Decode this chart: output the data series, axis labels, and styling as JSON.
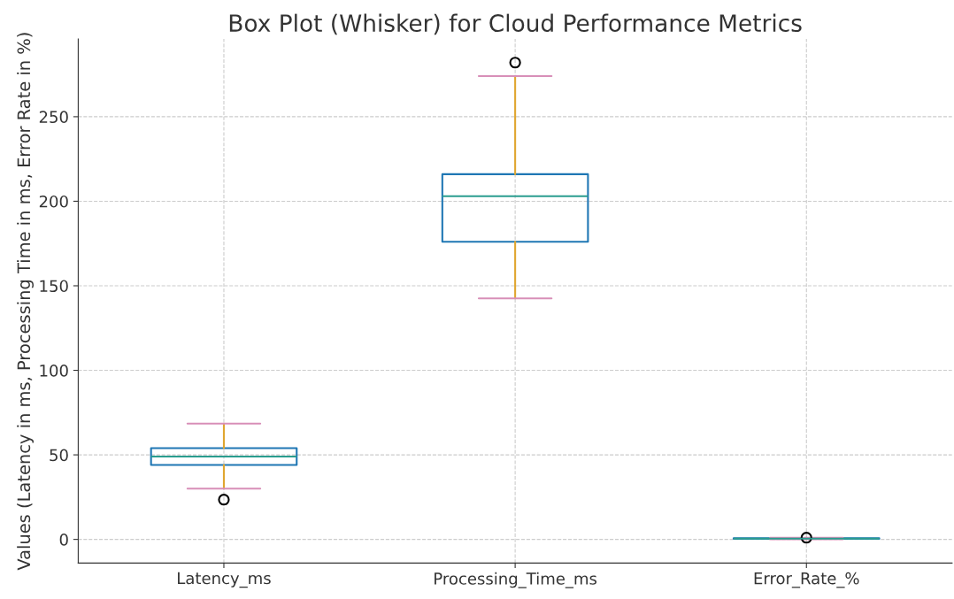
{
  "chart_data": {
    "type": "box",
    "title": "Box Plot (Whisker) for Cloud Performance Metrics",
    "ylabel": "Values (Latency in ms, Processing Time in ms, Error Rate in %)",
    "categories": [
      "Latency_ms",
      "Processing_Time_ms",
      "Error_Rate_%"
    ],
    "series": [
      {
        "color": "#1f77b4",
        "boxes": [
          {
            "low": 30,
            "q1": 44,
            "median": 49,
            "q3": 54,
            "high": 68.5,
            "outliers": [
              23.5
            ]
          },
          {
            "low": 142.5,
            "q1": 176,
            "median": 203,
            "q3": 216,
            "high": 274,
            "outliers": [
              282
            ]
          },
          {
            "low": 0.1,
            "q1": 0.3,
            "median": 0.5,
            "q3": 0.7,
            "high": 0.9,
            "outliers": [
              1
            ]
          }
        ]
      }
    ],
    "ylim": [
      -14,
      296
    ],
    "yticks": [
      0,
      50,
      100,
      150,
      200,
      250
    ],
    "grid": true
  }
}
